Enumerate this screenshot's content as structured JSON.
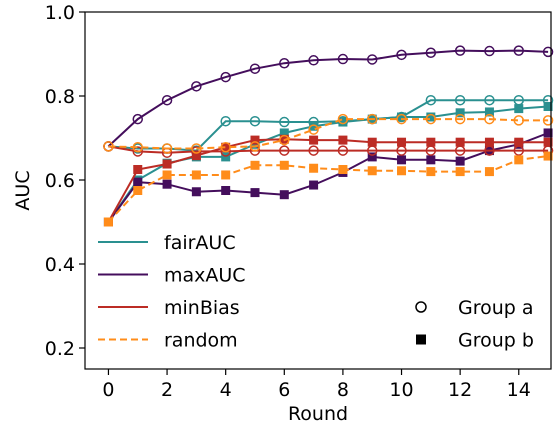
{
  "chart_data": {
    "type": "line",
    "xlabel": "Round",
    "ylabel": "AUC",
    "xlim": [
      -0.8,
      15.1
    ],
    "ylim": [
      0.15,
      1.0
    ],
    "xticks": [
      0,
      2,
      4,
      6,
      8,
      10,
      12,
      14
    ],
    "yticks": [
      0.2,
      0.4,
      0.6,
      0.8,
      1.0
    ],
    "x": [
      0,
      1,
      2,
      3,
      4,
      5,
      6,
      7,
      8,
      9,
      10,
      11,
      12,
      13,
      14,
      15
    ],
    "grid": false,
    "legend": {
      "placement": "lower-left",
      "group_placement": "lower-right",
      "groups": [
        {
          "label": "Group a",
          "marker": "open-circle"
        },
        {
          "label": "Group b",
          "marker": "filled-square"
        }
      ]
    },
    "series": [
      {
        "name": "fairAUC",
        "color": "#2a9090",
        "dash": false,
        "group_a": [
          0.68,
          0.675,
          0.675,
          0.67,
          0.74,
          0.74,
          0.738,
          0.738,
          0.74,
          0.745,
          0.75,
          0.79,
          0.79,
          0.79,
          0.79,
          0.79
        ],
        "group_b": [
          0.5,
          0.6,
          0.64,
          0.655,
          0.655,
          0.685,
          0.712,
          0.728,
          0.738,
          0.745,
          0.75,
          0.75,
          0.76,
          0.762,
          0.77,
          0.775
        ]
      },
      {
        "name": "maxAUC",
        "color": "#440e5c",
        "dash": false,
        "group_a": [
          0.68,
          0.745,
          0.79,
          0.823,
          0.845,
          0.865,
          0.878,
          0.885,
          0.888,
          0.887,
          0.898,
          0.903,
          0.908,
          0.907,
          0.908,
          0.905
        ],
        "group_b": [
          0.5,
          0.595,
          0.59,
          0.572,
          0.575,
          0.57,
          0.565,
          0.588,
          0.618,
          0.655,
          0.648,
          0.648,
          0.645,
          0.67,
          0.685,
          0.712
        ]
      },
      {
        "name": "minBias",
        "color": "#bc2c25",
        "dash": false,
        "group_a": [
          0.68,
          0.668,
          0.665,
          0.668,
          0.668,
          0.67,
          0.67,
          0.67,
          0.67,
          0.67,
          0.67,
          0.67,
          0.67,
          0.67,
          0.67,
          0.67
        ],
        "group_b": [
          0.5,
          0.625,
          0.638,
          0.658,
          0.678,
          0.695,
          0.697,
          0.695,
          0.695,
          0.69,
          0.69,
          0.69,
          0.69,
          0.69,
          0.69,
          0.69
        ]
      },
      {
        "name": "random",
        "color": "#ff8c1a",
        "dash": true,
        "group_a": [
          0.68,
          0.678,
          0.675,
          0.675,
          0.678,
          0.68,
          0.695,
          0.72,
          0.745,
          0.745,
          0.745,
          0.745,
          0.745,
          0.745,
          0.742,
          0.742
        ],
        "group_b": [
          0.5,
          0.575,
          0.612,
          0.612,
          0.612,
          0.635,
          0.635,
          0.628,
          0.625,
          0.622,
          0.622,
          0.62,
          0.62,
          0.62,
          0.648,
          0.657
        ]
      }
    ]
  }
}
